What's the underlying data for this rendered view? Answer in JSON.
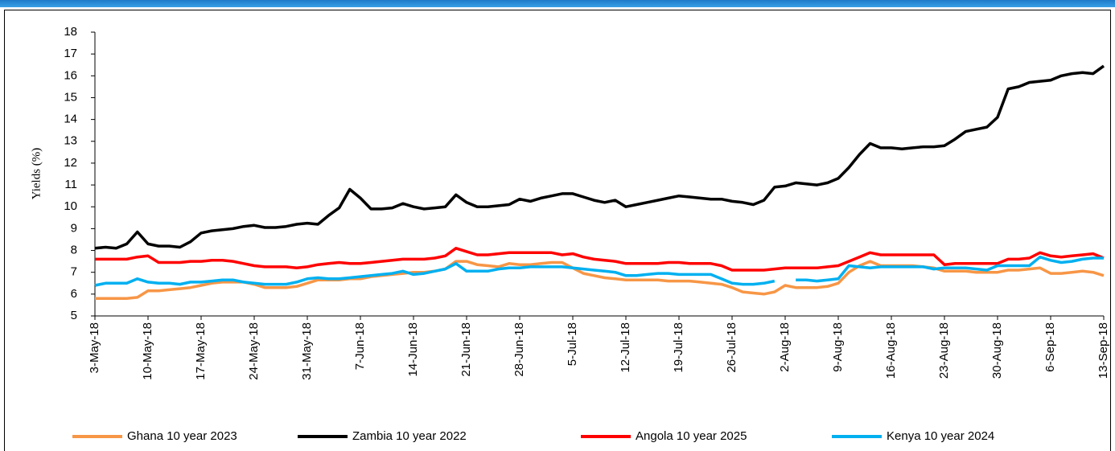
{
  "chart_data": {
    "type": "line",
    "ylabel": "Yields (%)",
    "categories": [
      "3-May-18",
      null,
      null,
      null,
      null,
      "10-May-18",
      null,
      null,
      null,
      null,
      "17-May-18",
      null,
      null,
      null,
      null,
      "24-May-18",
      null,
      null,
      null,
      null,
      "31-May-18",
      null,
      null,
      null,
      null,
      "7-Jun-18",
      null,
      null,
      null,
      null,
      "14-Jun-18",
      null,
      null,
      null,
      null,
      "21-Jun-18",
      null,
      null,
      null,
      null,
      "28-Jun-18",
      null,
      null,
      null,
      null,
      "5-Jul-18",
      null,
      null,
      null,
      null,
      "12-Jul-18",
      null,
      null,
      null,
      null,
      "19-Jul-18",
      null,
      null,
      null,
      null,
      "26-Jul-18",
      null,
      null,
      null,
      null,
      "2-Aug-18",
      null,
      null,
      null,
      null,
      "9-Aug-18",
      null,
      null,
      null,
      null,
      "16-Aug-18",
      null,
      null,
      null,
      null,
      "23-Aug-18",
      null,
      null,
      null,
      null,
      "30-Aug-18",
      null,
      null,
      null,
      null,
      "6-Sep-18",
      null,
      null,
      null,
      null,
      "13-Sep-18"
    ],
    "series": [
      {
        "name": "Ghana 10 year 2023",
        "color": "#f79646",
        "values": [
          5.8,
          5.8,
          5.8,
          5.8,
          5.85,
          6.15,
          6.15,
          6.2,
          6.25,
          6.3,
          6.4,
          6.5,
          6.55,
          6.55,
          6.55,
          6.45,
          6.3,
          6.3,
          6.3,
          6.35,
          6.5,
          6.65,
          6.65,
          6.65,
          6.7,
          6.7,
          6.8,
          6.85,
          6.9,
          6.95,
          7.0,
          7.0,
          7.05,
          7.15,
          7.5,
          7.5,
          7.35,
          7.3,
          7.25,
          7.4,
          7.35,
          7.35,
          7.4,
          7.45,
          7.45,
          7.2,
          6.95,
          6.85,
          6.75,
          6.7,
          6.65,
          6.65,
          6.65,
          6.65,
          6.6,
          6.6,
          6.6,
          6.55,
          6.5,
          6.45,
          6.3,
          6.1,
          6.05,
          6.0,
          6.1,
          6.4,
          6.3,
          6.3,
          6.3,
          6.35,
          6.5,
          7.0,
          7.3,
          7.5,
          7.3,
          7.3,
          7.3,
          7.3,
          7.25,
          7.2,
          7.05,
          7.05,
          7.05,
          7.0,
          7.0,
          7.0,
          7.1,
          7.1,
          7.15,
          7.2,
          6.95,
          6.95,
          7.0,
          7.05,
          7.0,
          6.85
        ]
      },
      {
        "name": "Zambia 10 year 2022",
        "color": "#000000",
        "values": [
          8.1,
          8.15,
          8.1,
          8.3,
          8.85,
          8.3,
          8.2,
          8.2,
          8.15,
          8.4,
          8.8,
          8.9,
          8.95,
          9.0,
          9.1,
          9.15,
          9.05,
          9.05,
          9.1,
          9.2,
          9.25,
          9.2,
          9.6,
          9.95,
          10.8,
          10.4,
          9.9,
          9.9,
          9.95,
          10.15,
          10.0,
          9.9,
          9.95,
          10.0,
          10.55,
          10.2,
          10.0,
          10.0,
          10.05,
          10.1,
          10.35,
          10.25,
          10.4,
          10.5,
          10.6,
          10.6,
          10.45,
          10.3,
          10.2,
          10.3,
          10.0,
          10.1,
          10.2,
          10.3,
          10.4,
          10.5,
          10.45,
          10.4,
          10.35,
          10.35,
          10.25,
          10.2,
          10.1,
          10.3,
          10.9,
          10.95,
          11.1,
          11.05,
          11.0,
          11.1,
          11.3,
          11.8,
          12.4,
          12.9,
          12.7,
          12.7,
          12.65,
          12.7,
          12.75,
          12.75,
          12.8,
          13.1,
          13.45,
          13.55,
          13.65,
          14.1,
          15.4,
          15.5,
          15.7,
          15.75,
          15.8,
          16.0,
          16.1,
          16.15,
          16.1,
          16.45
        ]
      },
      {
        "name": "Angola 10 year 2025",
        "color": "#ff0000",
        "values": [
          7.6,
          7.6,
          7.6,
          7.6,
          7.7,
          7.75,
          7.45,
          7.45,
          7.45,
          7.5,
          7.5,
          7.55,
          7.55,
          7.5,
          7.4,
          7.3,
          7.25,
          7.25,
          7.25,
          7.2,
          7.25,
          7.35,
          7.4,
          7.45,
          7.4,
          7.4,
          7.45,
          7.5,
          7.55,
          7.6,
          7.6,
          7.6,
          7.65,
          7.75,
          8.1,
          7.95,
          7.8,
          7.8,
          7.85,
          7.9,
          7.9,
          7.9,
          7.9,
          7.9,
          7.8,
          7.85,
          7.7,
          7.6,
          7.55,
          7.5,
          7.4,
          7.4,
          7.4,
          7.4,
          7.45,
          7.45,
          7.4,
          7.4,
          7.4,
          7.3,
          7.1,
          7.1,
          7.1,
          7.1,
          7.15,
          7.2,
          7.2,
          7.2,
          7.2,
          7.25,
          7.3,
          7.5,
          7.7,
          7.9,
          7.8,
          7.8,
          7.8,
          7.8,
          7.8,
          7.8,
          7.35,
          7.4,
          7.4,
          7.4,
          7.4,
          7.4,
          7.6,
          7.6,
          7.65,
          7.9,
          7.75,
          7.7,
          7.75,
          7.8,
          7.85,
          7.65
        ]
      },
      {
        "name": "Kenya 10 year 2024",
        "color": "#00b0f0",
        "values": [
          6.4,
          6.5,
          6.5,
          6.5,
          6.7,
          6.55,
          6.5,
          6.5,
          6.45,
          6.55,
          6.55,
          6.6,
          6.65,
          6.65,
          6.55,
          6.5,
          6.45,
          6.45,
          6.45,
          6.55,
          6.7,
          6.75,
          6.7,
          6.7,
          6.75,
          6.8,
          6.85,
          6.9,
          6.95,
          7.05,
          6.9,
          6.95,
          7.05,
          7.15,
          7.4,
          7.05,
          7.05,
          7.05,
          7.15,
          7.2,
          7.2,
          7.25,
          7.25,
          7.25,
          7.25,
          7.2,
          7.15,
          7.1,
          7.05,
          7.0,
          6.85,
          6.85,
          6.9,
          6.95,
          6.95,
          6.9,
          6.9,
          6.9,
          6.9,
          6.7,
          6.5,
          6.45,
          6.45,
          6.5,
          6.6,
          null,
          6.65,
          6.65,
          6.6,
          6.65,
          6.7,
          7.3,
          7.25,
          7.2,
          7.25,
          7.25,
          7.25,
          7.25,
          7.25,
          7.15,
          7.2,
          7.2,
          7.2,
          7.15,
          7.1,
          7.3,
          7.3,
          7.3,
          7.3,
          7.7,
          7.55,
          7.45,
          7.5,
          7.6,
          7.65,
          7.65
        ]
      }
    ],
    "ylim": [
      5,
      18
    ],
    "yticks": [
      5,
      6,
      7,
      8,
      9,
      10,
      11,
      12,
      13,
      14,
      15,
      16,
      17,
      18
    ],
    "grid": false,
    "legend": "bottom"
  }
}
